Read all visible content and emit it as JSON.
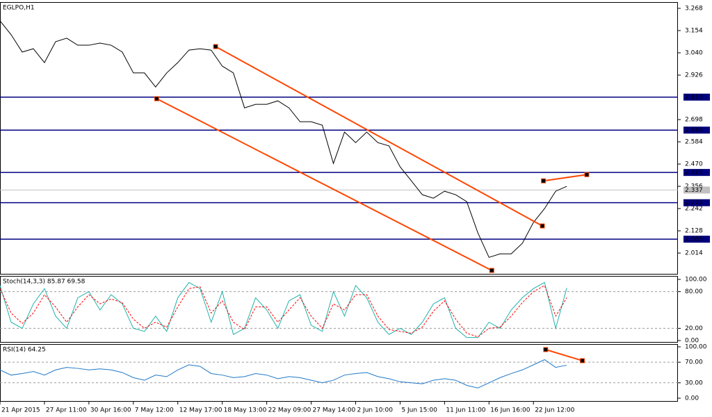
{
  "chart_data": [
    {
      "type": "line",
      "title": "EGLPO,H1",
      "xlim": [
        0,
        61
      ],
      "ylim": [
        1.904,
        3.3
      ],
      "yticks": [
        3.268,
        3.154,
        {
          "value": 3.04,
          "label": "3.040"
        },
        2.926,
        2.698,
        2.584,
        {
          "value": 2.47,
          "label": "2.470"
        },
        2.356,
        2.242,
        2.128,
        2.014
      ],
      "series": [
        {
          "color": "#000000",
          "values": [
            3.204,
            3.133,
            3.044,
            3.061,
            2.99,
            3.097,
            3.115,
            3.079,
            3.079,
            3.09,
            3.079,
            3.044,
            2.937,
            2.937,
            2.865,
            2.937,
            2.99,
            3.054,
            3.061,
            3.054,
            2.972,
            2.937,
            2.758,
            2.776,
            2.776,
            2.794,
            2.758,
            2.687,
            2.687,
            2.669,
            2.473,
            2.634,
            2.58,
            2.634,
            2.58,
            2.563,
            2.456,
            2.385,
            2.313,
            2.295,
            2.331,
            2.313,
            2.277,
            2.117,
            1.992,
            2.01,
            2.01,
            2.064,
            2.171,
            2.242,
            2.331,
            2.356
          ]
        }
      ],
      "levels": [
        2.813,
        2.644,
        2.427,
        2.272,
        2.085
      ],
      "level_color": "#000080",
      "current_price": 2.337,
      "trendlines": [
        {
          "color": "#ff4500",
          "x": [
            19.4,
            48.8
          ],
          "y": [
            3.072,
            2.153
          ]
        },
        {
          "color": "#ff4500",
          "x": [
            14.1,
            44.25
          ],
          "y": [
            2.805,
            1.925
          ]
        },
        {
          "color": "#ff4500",
          "x": [
            48.9,
            52.8
          ],
          "y": [
            2.384,
            2.416
          ]
        }
      ]
    },
    {
      "type": "line",
      "title": "Stoch(14,3,3) 85.87 69.58",
      "xlim": [
        0,
        61
      ],
      "ylim": [
        -3.4,
        105.7
      ],
      "yticks": [
        {
          "value": 100,
          "label": "100.00"
        },
        {
          "value": 80,
          "label": "80.00"
        },
        {
          "value": 20,
          "label": "20.00"
        },
        {
          "value": 0,
          "label": "0.00"
        }
      ],
      "levels": [
        80,
        20
      ],
      "series": [
        {
          "color": "#20b2aa",
          "values": [
            90,
            30,
            20,
            60,
            85,
            40,
            20,
            70,
            80,
            50,
            75,
            60,
            20,
            15,
            40,
            15,
            70,
            95,
            85,
            30,
            80,
            10,
            20,
            70,
            50,
            20,
            65,
            75,
            25,
            15,
            80,
            40,
            90,
            70,
            30,
            10,
            20,
            10,
            30,
            60,
            70,
            20,
            5,
            5,
            30,
            20,
            50,
            70,
            85,
            95,
            20,
            86
          ]
        },
        {
          "color": "#ff0000",
          "dash": true,
          "values": [
            85,
            45,
            28,
            45,
            75,
            55,
            30,
            55,
            75,
            60,
            68,
            62,
            35,
            20,
            30,
            22,
            55,
            85,
            88,
            45,
            65,
            30,
            18,
            55,
            55,
            30,
            50,
            70,
            40,
            20,
            60,
            50,
            75,
            75,
            40,
            18,
            15,
            12,
            22,
            48,
            65,
            35,
            12,
            6,
            20,
            22,
            40,
            62,
            80,
            90,
            40,
            70
          ]
        }
      ]
    },
    {
      "type": "line",
      "title": "RSI(14) 64.25",
      "xlim": [
        0,
        61
      ],
      "ylim": [
        -6.8,
        105.4
      ],
      "yticks": [
        {
          "value": 100,
          "label": "100.00"
        },
        {
          "value": 70,
          "label": "70.00"
        },
        {
          "value": 30,
          "label": "30.00"
        },
        {
          "value": 0,
          "label": "0.00"
        }
      ],
      "levels": [
        70,
        30
      ],
      "series": [
        {
          "color": "#1e78c8",
          "values": [
            55,
            45,
            48,
            52,
            45,
            55,
            60,
            58,
            55,
            57,
            55,
            50,
            40,
            35,
            45,
            42,
            55,
            65,
            62,
            48,
            45,
            40,
            42,
            48,
            45,
            38,
            42,
            40,
            35,
            30,
            35,
            45,
            48,
            50,
            42,
            38,
            32,
            30,
            28,
            35,
            38,
            35,
            25,
            20,
            30,
            40,
            48,
            55,
            65,
            75,
            60,
            64.25
          ]
        }
      ],
      "trendlines": [
        {
          "color": "#ff4500",
          "x": [
            49.1,
            52.4
          ],
          "y": [
            94.6,
            73.0
          ]
        }
      ],
      "xticks": [
        {
          "value": 0,
          "label": "21 Apr 2015"
        },
        {
          "value": 4,
          "label": "27 Apr 11:00"
        },
        {
          "value": 8,
          "label": "30 Apr 16:00"
        },
        {
          "value": 12,
          "label": "7 May 12:00"
        },
        {
          "value": 16,
          "label": "12 May 17:00"
        },
        {
          "value": 20,
          "label": "18 May 13:00"
        },
        {
          "value": 24,
          "label": "22 May 09:00"
        },
        {
          "value": 28,
          "label": "27 May 14:00"
        },
        {
          "value": 32,
          "label": "2 Jun 10:00"
        },
        {
          "value": 36,
          "label": "5 Jun 15:00"
        },
        {
          "value": 40,
          "label": "11 Jun 11:00"
        },
        {
          "value": 44,
          "label": "16 Jun 16:00"
        },
        {
          "value": 48,
          "label": "22 Jun 12:00"
        }
      ]
    }
  ]
}
